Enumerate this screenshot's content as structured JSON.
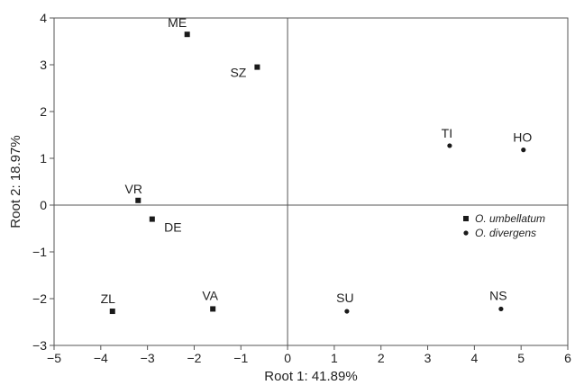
{
  "chart_data": {
    "type": "scatter",
    "title": "",
    "xlabel": "Root 1: 41.89%",
    "ylabel": "Root 2: 18.97%",
    "xlim": [
      -5,
      6
    ],
    "ylim": [
      -3,
      4
    ],
    "xticks": [
      "−5",
      "−4",
      "−3",
      "−2",
      "−1",
      "0",
      "1",
      "2",
      "3",
      "4",
      "5",
      "6"
    ],
    "yticks": [
      "−3",
      "−2",
      "−1",
      "0",
      "1",
      "2",
      "3",
      "4"
    ],
    "grid": false,
    "zero_lines": true,
    "legend_position": "right-center",
    "series": [
      {
        "name": "O. umbellatum",
        "marker": "square",
        "points": [
          {
            "label": "ME",
            "x": -2.15,
            "y": 3.65
          },
          {
            "label": "SZ",
            "x": -0.65,
            "y": 2.95
          },
          {
            "label": "VR",
            "x": -3.2,
            "y": 0.1
          },
          {
            "label": "DE",
            "x": -2.9,
            "y": -0.3
          },
          {
            "label": "ZL",
            "x": -3.75,
            "y": -2.27
          },
          {
            "label": "VA",
            "x": -1.6,
            "y": -2.22
          }
        ]
      },
      {
        "name": "O. divergens",
        "marker": "circle",
        "points": [
          {
            "label": "TI",
            "x": 3.47,
            "y": 1.27
          },
          {
            "label": "HO",
            "x": 5.05,
            "y": 1.18
          },
          {
            "label": "SU",
            "x": 1.27,
            "y": -2.27
          },
          {
            "label": "NS",
            "x": 4.57,
            "y": -2.22
          }
        ]
      }
    ],
    "colors": {
      "marks": "#1a1a1a",
      "axes": "#555555"
    }
  }
}
